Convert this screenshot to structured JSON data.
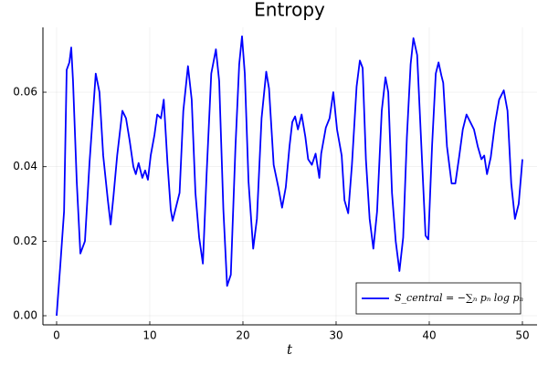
{
  "chart_data": {
    "type": "line",
    "title": "Entropy",
    "x_label": "t",
    "xlim": [
      -1.47,
      51.57
    ],
    "ylim": [
      -0.00245,
      0.0774
    ],
    "xticks": [
      0,
      10,
      20,
      30,
      40,
      50
    ],
    "yticks": [
      {
        "value": 0,
        "label": "0.00"
      },
      {
        "value": 0.02,
        "label": "0.02"
      },
      {
        "value": 0.04,
        "label": "0.04"
      },
      {
        "value": 0.06,
        "label": "0.06"
      }
    ],
    "grid": true,
    "legend_position": "bottom-right",
    "series": [
      {
        "name": "S_central = −∑ₙ pₙ log pₙ",
        "color": "#0000ff",
        "x": [
          0,
          0.4,
          0.8,
          1.08,
          1.37,
          1.57,
          1.76,
          2.16,
          2.55,
          3.04,
          3.53,
          4.2,
          4.6,
          5.0,
          5.5,
          5.8,
          6.1,
          6.5,
          7.06,
          7.45,
          7.84,
          8.24,
          8.5,
          8.8,
          9.2,
          9.5,
          9.8,
          10.1,
          10.5,
          10.8,
          11.2,
          11.5,
          11.9,
          12.25,
          12.45,
          12.8,
          13.2,
          13.6,
          14.1,
          14.5,
          14.9,
          15.3,
          15.7,
          16.1,
          16.6,
          17.1,
          17.45,
          17.9,
          18.3,
          18.7,
          19.2,
          19.6,
          19.9,
          20.2,
          20.6,
          21.1,
          21.5,
          22.0,
          22.5,
          22.8,
          23.3,
          23.8,
          24.2,
          24.6,
          25.0,
          25.3,
          25.6,
          25.9,
          26.3,
          26.7,
          27.0,
          27.4,
          27.8,
          28.2,
          28.4,
          28.9,
          29.3,
          29.7,
          30.1,
          30.6,
          30.9,
          31.3,
          31.7,
          32.2,
          32.55,
          32.85,
          33.2,
          33.6,
          34.0,
          34.4,
          34.9,
          35.3,
          35.6,
          36.0,
          36.4,
          36.8,
          37.2,
          37.6,
          38.0,
          38.3,
          38.7,
          39.2,
          39.6,
          39.9,
          40.3,
          40.7,
          41.0,
          41.3,
          41.5,
          41.9,
          42.4,
          42.8,
          43.2,
          43.6,
          44.0,
          44.4,
          44.8,
          45.2,
          45.6,
          45.9,
          46.2,
          46.6,
          47.05,
          47.5,
          48.0,
          48.4,
          48.8,
          49.2,
          49.6,
          50.0
        ],
        "values": [
          0,
          0.0137,
          0.028,
          0.066,
          0.068,
          0.072,
          0.063,
          0.036,
          0.0167,
          0.02,
          0.041,
          0.065,
          0.06,
          0.043,
          0.031,
          0.0245,
          0.032,
          0.043,
          0.055,
          0.053,
          0.047,
          0.04,
          0.038,
          0.041,
          0.037,
          0.039,
          0.0365,
          0.043,
          0.0485,
          0.054,
          0.053,
          0.058,
          0.041,
          0.0285,
          0.0255,
          0.029,
          0.033,
          0.055,
          0.067,
          0.058,
          0.033,
          0.021,
          0.014,
          0.038,
          0.065,
          0.0715,
          0.063,
          0.0285,
          0.008,
          0.011,
          0.0455,
          0.0675,
          0.075,
          0.065,
          0.036,
          0.018,
          0.026,
          0.053,
          0.0655,
          0.061,
          0.0405,
          0.0345,
          0.029,
          0.0345,
          0.0455,
          0.052,
          0.0535,
          0.05,
          0.054,
          0.048,
          0.042,
          0.0405,
          0.0435,
          0.037,
          0.0435,
          0.0505,
          0.053,
          0.06,
          0.05,
          0.043,
          0.031,
          0.0275,
          0.0405,
          0.0615,
          0.0685,
          0.0665,
          0.042,
          0.026,
          0.018,
          0.028,
          0.055,
          0.064,
          0.06,
          0.033,
          0.02,
          0.012,
          0.021,
          0.048,
          0.0675,
          0.0745,
          0.07,
          0.043,
          0.0215,
          0.0205,
          0.0455,
          0.065,
          0.068,
          0.0645,
          0.0625,
          0.0455,
          0.0355,
          0.0355,
          0.0425,
          0.05,
          0.054,
          0.052,
          0.05,
          0.0455,
          0.042,
          0.043,
          0.038,
          0.0425,
          0.0515,
          0.058,
          0.0605,
          0.055,
          0.0355,
          0.026,
          0.03,
          0.042
        ]
      }
    ]
  }
}
